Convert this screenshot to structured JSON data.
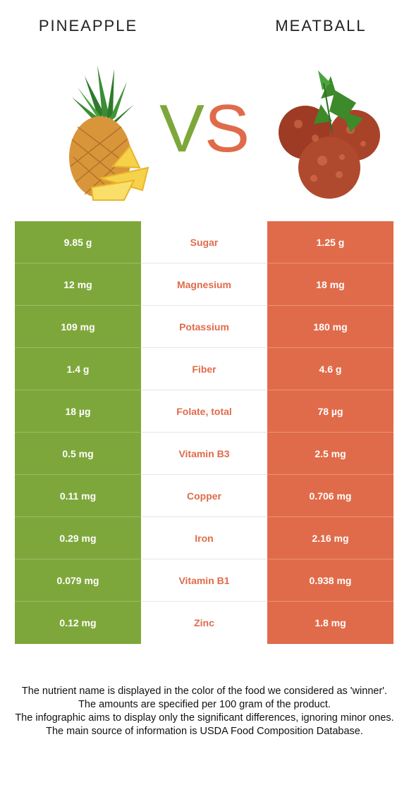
{
  "header": {
    "left_food": "PINEAPPLE",
    "right_food": "MEATBALL",
    "vs_v": "V",
    "vs_s": "S"
  },
  "colors": {
    "left_accent": "#7ea73b",
    "right_accent": "#e06b4a"
  },
  "rows": [
    {
      "left": "9.85 g",
      "nutrient": "Sugar",
      "right": "1.25 g"
    },
    {
      "left": "12 mg",
      "nutrient": "Magnesium",
      "right": "18 mg"
    },
    {
      "left": "109 mg",
      "nutrient": "Potassium",
      "right": "180 mg"
    },
    {
      "left": "1.4 g",
      "nutrient": "Fiber",
      "right": "4.6 g"
    },
    {
      "left": "18 µg",
      "nutrient": "Folate, total",
      "right": "78 µg"
    },
    {
      "left": "0.5 mg",
      "nutrient": "Vitamin B3",
      "right": "2.5 mg"
    },
    {
      "left": "0.11 mg",
      "nutrient": "Copper",
      "right": "0.706 mg"
    },
    {
      "left": "0.29 mg",
      "nutrient": "Iron",
      "right": "2.16 mg"
    },
    {
      "left": "0.079 mg",
      "nutrient": "Vitamin B1",
      "right": "0.938 mg"
    },
    {
      "left": "0.12 mg",
      "nutrient": "Zinc",
      "right": "1.8 mg"
    }
  ],
  "footer": {
    "line1": "The nutrient name is displayed in the color of the food we considered as 'winner'.",
    "line2": "The amounts are specified per 100 gram of the product.",
    "line3": "The infographic aims to display only the significant differences, ignoring minor ones.",
    "line4": "The main source of information is USDA Food Composition Database."
  }
}
